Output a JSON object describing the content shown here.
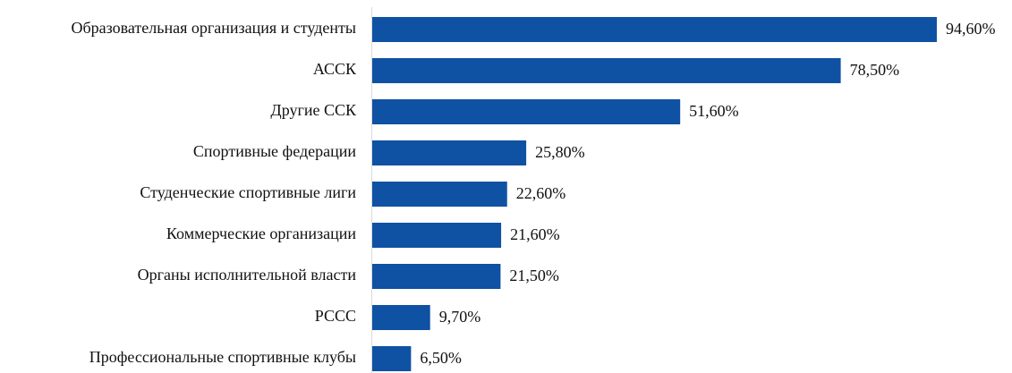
{
  "chart_data": {
    "type": "barh",
    "categories": [
      "Образовательная организация и студенты",
      "АССК",
      "Другие ССК",
      "Спортивные федерации",
      "Студенческие спортивные лиги",
      "Коммерческие организации",
      "Органы исполнительной власти",
      "РССС",
      "Профессиональные спортивные клубы"
    ],
    "values": [
      94.6,
      78.5,
      51.6,
      25.8,
      22.6,
      21.6,
      21.5,
      9.7,
      6.5
    ],
    "value_labels": [
      "94,60%",
      "78,50%",
      "51,60%",
      "25,80%",
      "22,60%",
      "21,60%",
      "21,50%",
      "9,70%",
      "6,50%"
    ],
    "color": "#0f51a3",
    "xlim": [
      0,
      100
    ]
  }
}
